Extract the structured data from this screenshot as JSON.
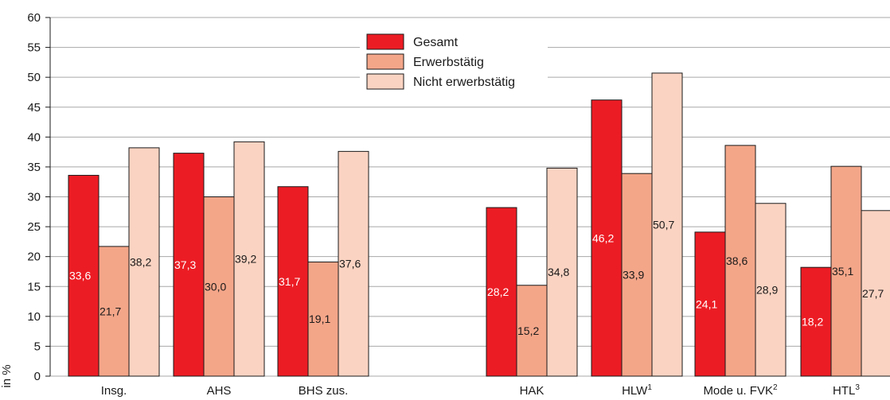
{
  "chart_data": {
    "type": "bar",
    "ylabel": "in %",
    "ylim": [
      0,
      60
    ],
    "yticks": [
      0,
      5,
      10,
      15,
      20,
      25,
      30,
      35,
      40,
      45,
      50,
      55,
      60
    ],
    "grid": true,
    "legend_position": "top-center",
    "categories": [
      "Insg.",
      "AHS",
      "BHS zus.",
      "HAK",
      "HLW",
      "Mode u. FVK",
      "HTL"
    ],
    "category_superscripts": [
      "",
      "",
      "",
      "",
      "1",
      "2",
      "3"
    ],
    "series": [
      {
        "name": "Gesamt",
        "color": "#ec1c24",
        "label_color": "#ffffff",
        "values": [
          33.6,
          37.3,
          31.7,
          28.2,
          46.2,
          24.1,
          18.2
        ],
        "labels": [
          "33,6",
          "37,3",
          "31,7",
          "28,2",
          "46,2",
          "24,1",
          "18,2"
        ]
      },
      {
        "name": "Erwerbstätig",
        "color": "#f4a689",
        "label_color": "#1a1a1a",
        "values": [
          21.7,
          30.0,
          19.1,
          15.2,
          33.9,
          38.6,
          35.1
        ],
        "labels": [
          "21,7",
          "30,0",
          "19,1",
          "15,2",
          "33,9",
          "38,6",
          "35,1"
        ]
      },
      {
        "name": "Nicht erwerbstätig",
        "color": "#fbd3c2",
        "label_color": "#1a1a1a",
        "values": [
          38.2,
          39.2,
          37.6,
          34.8,
          50.7,
          28.9,
          27.7
        ],
        "labels": [
          "38,2",
          "39,2",
          "37,6",
          "34,8",
          "50,7",
          "28,9",
          "27,7"
        ]
      }
    ]
  }
}
